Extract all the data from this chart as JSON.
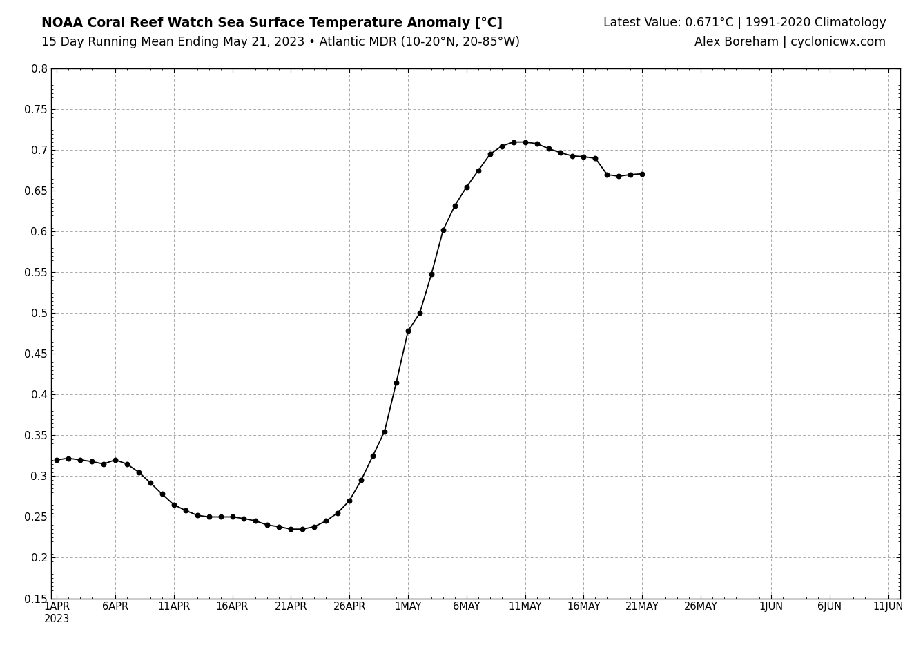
{
  "title_line1": "NOAA Coral Reef Watch Sea Surface Temperature Anomaly [°C]",
  "title_line2": "15 Day Running Mean Ending May 21, 2023 • Atlantic MDR (10-20°N, 20-85°W)",
  "title_right_line1": "Latest Value: 0.671°C | 1991-2020 Climatology",
  "title_right_line2": "Alex Boreham | cyclonicwx.com",
  "ylim": [
    0.15,
    0.8
  ],
  "yticks": [
    0.15,
    0.2,
    0.25,
    0.3,
    0.35,
    0.4,
    0.45,
    0.5,
    0.55,
    0.6,
    0.65,
    0.7,
    0.75,
    0.8
  ],
  "background_color": "#ffffff",
  "line_color": "#000000",
  "dot_color": "#000000",
  "grid_color": "#aaaaaa",
  "x_labels": [
    "1APR\n2023",
    "6APR",
    "11APR",
    "16APR",
    "21APR",
    "26APR",
    "1MAY",
    "6MAY",
    "11MAY",
    "16MAY",
    "21MAY",
    "26MAY",
    "1JUN",
    "6JUN",
    "11JUN"
  ],
  "x_label_days": [
    0,
    5,
    10,
    15,
    20,
    25,
    30,
    35,
    40,
    45,
    50,
    55,
    61,
    66,
    71
  ],
  "xlim": [
    -0.5,
    72
  ],
  "data_days": [
    0,
    1,
    2,
    3,
    4,
    5,
    6,
    7,
    8,
    9,
    10,
    11,
    12,
    13,
    14,
    15,
    16,
    17,
    18,
    19,
    20,
    21,
    22,
    23,
    24,
    25,
    26,
    27,
    28,
    29,
    30,
    31,
    32,
    33,
    34,
    35,
    36,
    37,
    38,
    39,
    40,
    41,
    42,
    43,
    44,
    45,
    46,
    47,
    48,
    49,
    50
  ],
  "data_values": [
    0.32,
    0.322,
    0.32,
    0.318,
    0.315,
    0.32,
    0.315,
    0.305,
    0.292,
    0.278,
    0.265,
    0.258,
    0.252,
    0.25,
    0.25,
    0.25,
    0.248,
    0.245,
    0.24,
    0.238,
    0.235,
    0.235,
    0.238,
    0.245,
    0.255,
    0.27,
    0.295,
    0.325,
    0.355,
    0.415,
    0.478,
    0.5,
    0.548,
    0.602,
    0.632,
    0.655,
    0.675,
    0.695,
    0.705,
    0.71,
    0.71,
    0.708,
    0.702,
    0.697,
    0.693,
    0.692,
    0.69,
    0.67,
    0.668,
    0.67,
    0.671
  ]
}
